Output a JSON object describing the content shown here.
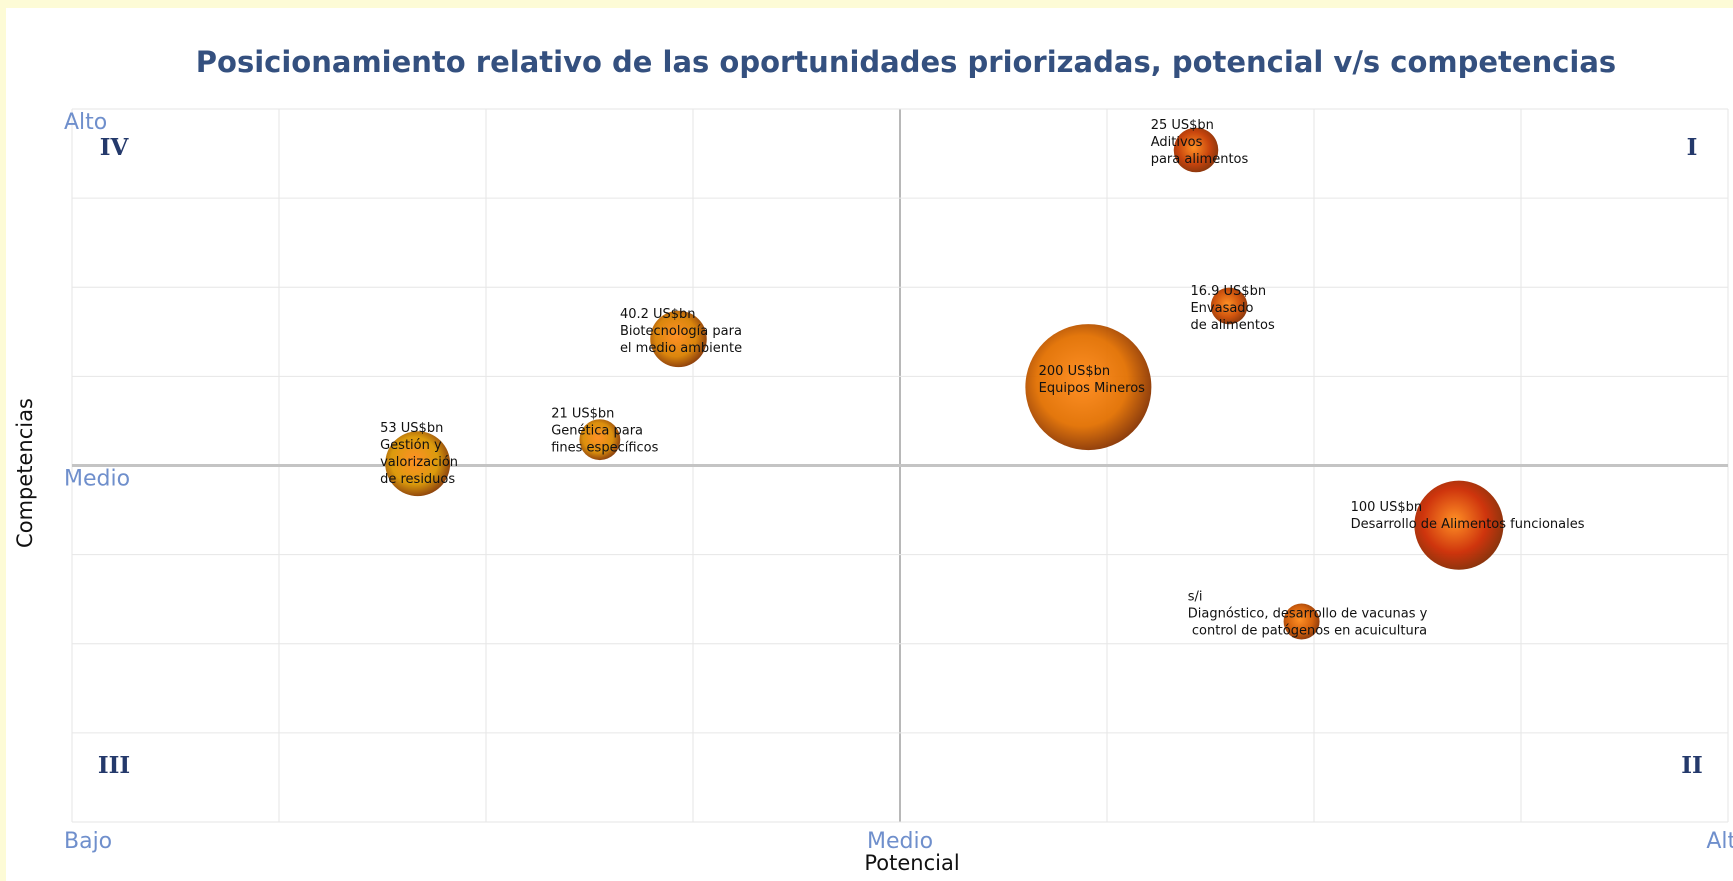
{
  "chart_data": {
    "type": "bubble",
    "title": "Posicionamiento relativo de las oportunidades priorizadas, potencial v/s competencias",
    "xlabel": "Potencial",
    "ylabel": "Competencias",
    "xlim": [
      0,
      8
    ],
    "ylim": [
      0,
      8
    ],
    "xticks": [
      {
        "value": 0,
        "label": "Bajo"
      },
      {
        "value": 4,
        "label": "Medio"
      },
      {
        "value": 8,
        "label": "Alto"
      }
    ],
    "yticks": [
      {
        "value": 4,
        "label": "Medio"
      },
      {
        "value": 8,
        "label": "Alto"
      }
    ],
    "xgrid": [
      0,
      1,
      2,
      3,
      4,
      5,
      6,
      7,
      8
    ],
    "ygrid": [
      0,
      1,
      2,
      3,
      4,
      5,
      6,
      7,
      8
    ],
    "grid": true,
    "quadrants": [
      {
        "label": "I",
        "corner": "top-right"
      },
      {
        "label": "II",
        "corner": "bottom-right"
      },
      {
        "label": "III",
        "corner": "bottom-left"
      },
      {
        "label": "IV",
        "corner": "top-left"
      }
    ],
    "series": [
      {
        "x": [
          5.43,
          5.59,
          2.93,
          4.91,
          2.55,
          1.67,
          6.7,
          5.94
        ],
        "values": [
          7.54,
          5.79,
          5.42,
          4.88,
          4.29,
          4.02,
          3.33,
          2.25
        ],
        "sizes": [
          25,
          16.9,
          40.2,
          200,
          21,
          53,
          100,
          null
        ],
        "value_labels": [
          "25 US$bn",
          "16.9 US$bn",
          "40.2 US$bn",
          "200 US$bn",
          "21 US$bn",
          "53 US$bn",
          "100 US$bn",
          "s/i"
        ],
        "labels": [
          [
            "Aditivos",
            "para alimentos"
          ],
          [
            "Envasado",
            "de alimentos"
          ],
          [
            "Biotecnología para",
            "el medio ambiente"
          ],
          [
            "Equipos Mineros"
          ],
          [
            "Genética para",
            "fines específicos"
          ],
          [
            "Gestión y",
            "valorización",
            "de residuos"
          ],
          [
            "Desarrollo de Alimentos funcionales"
          ],
          [
            "Diagnóstico, desarrollo de vacunas y",
            " control de patógenos en acuicultura"
          ]
        ],
        "colors": [
          "#c43a00",
          "#cc4a00",
          "#d98000",
          "#e27000",
          "#d98a00",
          "#d99600",
          "#cc2a00",
          "#d05800"
        ]
      }
    ]
  }
}
